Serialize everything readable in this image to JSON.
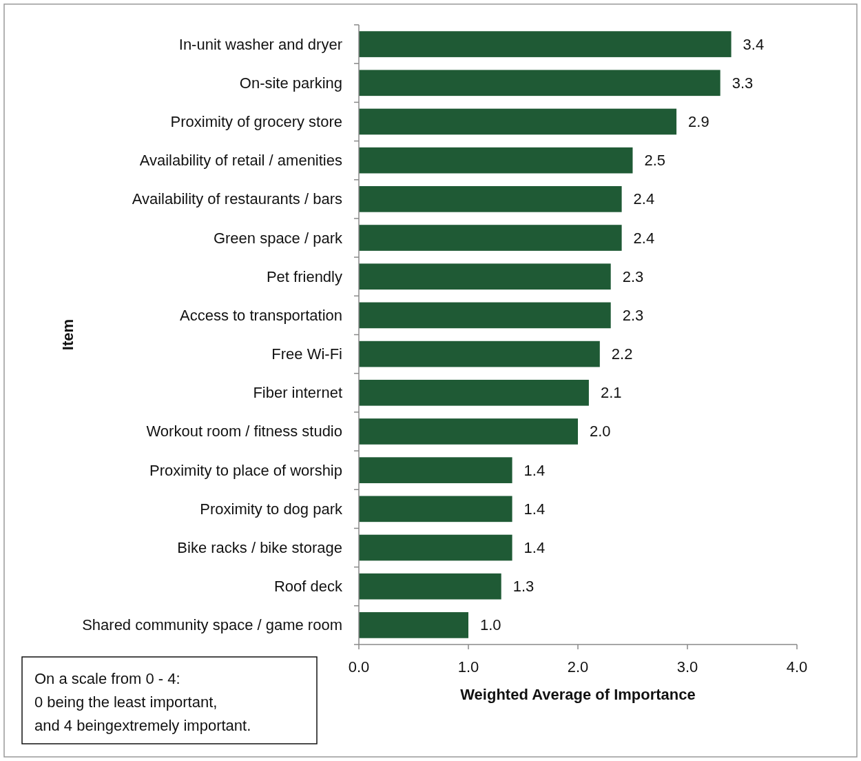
{
  "chart_data": {
    "type": "bar",
    "orientation": "horizontal",
    "xlabel": "Weighted Average of Importance",
    "ylabel": "Item",
    "categories": [
      "In-unit washer and dryer",
      "On-site parking",
      "Proximity of grocery store",
      "Availability of retail / amenities",
      "Availability of restaurants / bars",
      "Green space / park",
      "Pet friendly",
      "Access to transportation",
      "Free Wi-Fi",
      "Fiber internet",
      "Workout room / fitness studio",
      "Proximity to place of worship",
      "Proximity to dog park",
      "Bike racks / bike storage",
      "Roof deck",
      "Shared community space / game room"
    ],
    "values": [
      3.4,
      3.3,
      2.9,
      2.5,
      2.4,
      2.4,
      2.3,
      2.3,
      2.2,
      2.1,
      2.0,
      1.4,
      1.4,
      1.4,
      1.3,
      1.0
    ],
    "value_labels": [
      "3.4",
      "3.3",
      "2.9",
      "2.5",
      "2.4",
      "2.4",
      "2.3",
      "2.3",
      "2.2",
      "2.1",
      "2.0",
      "1.4",
      "1.4",
      "1.4",
      "1.3",
      "1.0"
    ],
    "color": "#1f5a35",
    "grid": false,
    "xlim": [
      0,
      4
    ],
    "xticks": [
      {
        "value": 0,
        "label": "0.0"
      },
      {
        "value": 1,
        "label": "1.0"
      },
      {
        "value": 2,
        "label": "2.0"
      },
      {
        "value": 3,
        "label": "3.0"
      },
      {
        "value": 4,
        "label": "4.0"
      }
    ],
    "annotations": [
      "On a scale from 0 - 4:\n0 being the least important,\nand 4 beingextremely important."
    ]
  }
}
